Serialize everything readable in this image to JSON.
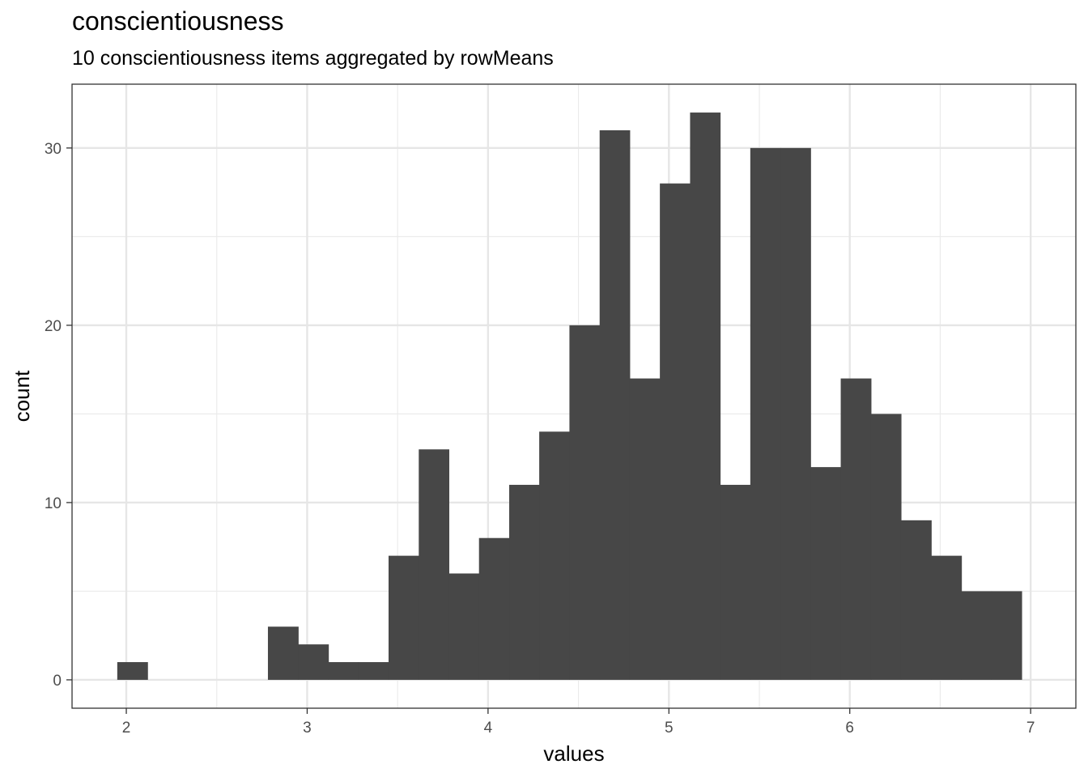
{
  "chart_data": {
    "type": "bar",
    "title": "conscientiousness",
    "subtitle": "10 conscientiousness items aggregated by rowMeans",
    "xlabel": "values",
    "ylabel": "count",
    "xlim": [
      1.7,
      7.25
    ],
    "ylim": [
      -1.6,
      33.6
    ],
    "x_ticks": [
      2,
      3,
      4,
      5,
      6,
      7
    ],
    "y_ticks": [
      0,
      10,
      20,
      30
    ],
    "grid": true,
    "bar_color": "#474747",
    "bins": [
      {
        "x0": 1.95,
        "x1": 2.117,
        "count": 1
      },
      {
        "x0": 2.117,
        "x1": 2.283,
        "count": 0
      },
      {
        "x0": 2.283,
        "x1": 2.45,
        "count": 0
      },
      {
        "x0": 2.45,
        "x1": 2.617,
        "count": 0
      },
      {
        "x0": 2.617,
        "x1": 2.783,
        "count": 0
      },
      {
        "x0": 2.783,
        "x1": 2.95,
        "count": 3
      },
      {
        "x0": 2.95,
        "x1": 3.117,
        "count": 2
      },
      {
        "x0": 3.117,
        "x1": 3.283,
        "count": 1
      },
      {
        "x0": 3.283,
        "x1": 3.45,
        "count": 1
      },
      {
        "x0": 3.45,
        "x1": 3.617,
        "count": 7
      },
      {
        "x0": 3.617,
        "x1": 3.783,
        "count": 13
      },
      {
        "x0": 3.783,
        "x1": 3.95,
        "count": 6
      },
      {
        "x0": 3.95,
        "x1": 4.117,
        "count": 8
      },
      {
        "x0": 4.117,
        "x1": 4.283,
        "count": 11
      },
      {
        "x0": 4.283,
        "x1": 4.45,
        "count": 14
      },
      {
        "x0": 4.45,
        "x1": 4.617,
        "count": 20
      },
      {
        "x0": 4.617,
        "x1": 4.783,
        "count": 31
      },
      {
        "x0": 4.783,
        "x1": 4.95,
        "count": 17
      },
      {
        "x0": 4.95,
        "x1": 5.117,
        "count": 28
      },
      {
        "x0": 5.117,
        "x1": 5.283,
        "count": 32
      },
      {
        "x0": 5.283,
        "x1": 5.45,
        "count": 11
      },
      {
        "x0": 5.45,
        "x1": 5.617,
        "count": 30
      },
      {
        "x0": 5.617,
        "x1": 5.783,
        "count": 30
      },
      {
        "x0": 5.783,
        "x1": 5.95,
        "count": 12
      },
      {
        "x0": 5.95,
        "x1": 6.117,
        "count": 17
      },
      {
        "x0": 6.117,
        "x1": 6.283,
        "count": 15
      },
      {
        "x0": 6.283,
        "x1": 6.45,
        "count": 9
      },
      {
        "x0": 6.45,
        "x1": 6.617,
        "count": 7
      },
      {
        "x0": 6.617,
        "x1": 6.783,
        "count": 5
      },
      {
        "x0": 6.783,
        "x1": 6.95,
        "count": 5
      }
    ]
  }
}
